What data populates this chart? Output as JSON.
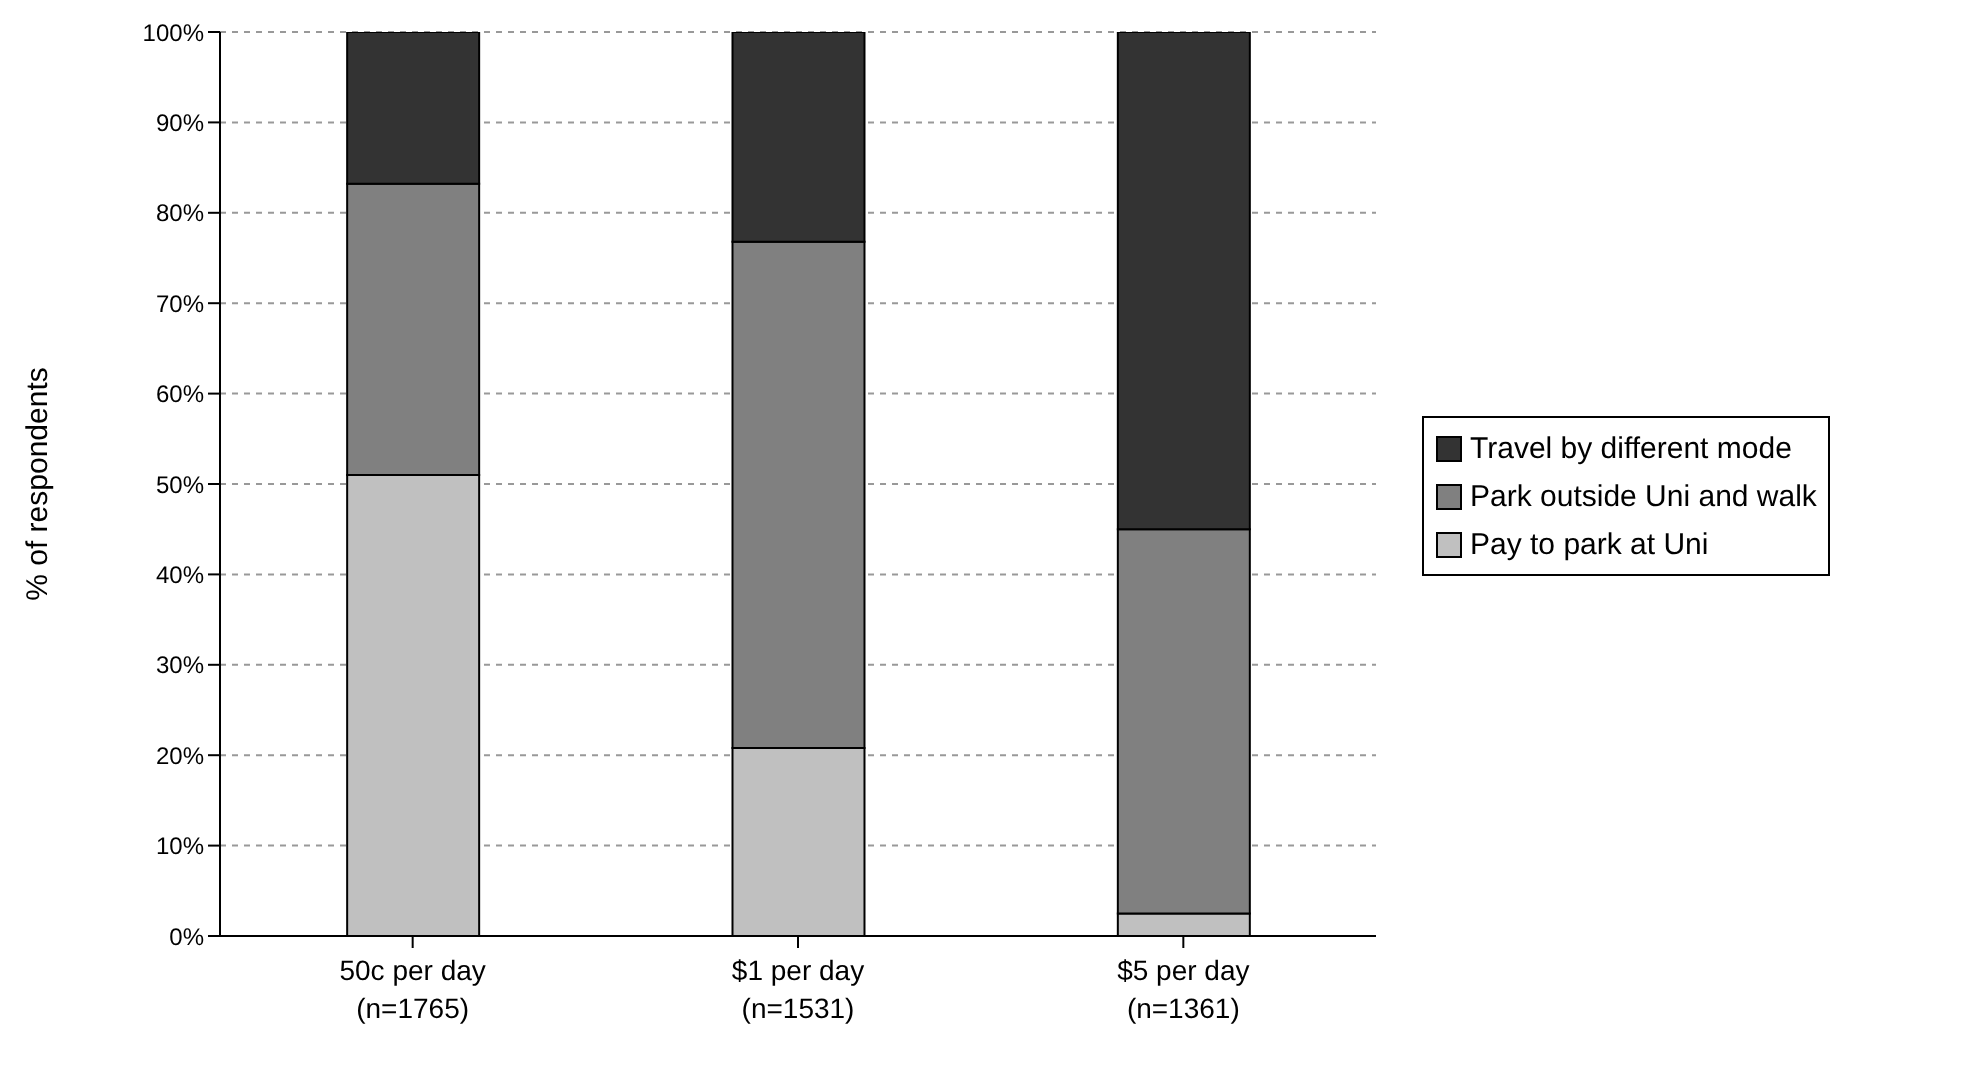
{
  "chart_data": {
    "type": "bar",
    "stacked": true,
    "ylabel": "% of respondents",
    "categories": [
      "50c per day\n(n=1765)",
      "$1 per day\n(n=1531)",
      "$5 per day\n(n=1361)"
    ],
    "series": [
      {
        "name": "Pay to park at Uni",
        "color": "#c0c0c0",
        "values": [
          51,
          20.8,
          2.5
        ]
      },
      {
        "name": "Park outside Uni and walk",
        "color": "#808080",
        "values": [
          32.2,
          56,
          42.5
        ]
      },
      {
        "name": "Travel by different mode",
        "color": "#333333",
        "values": [
          16.8,
          23.2,
          55
        ]
      }
    ],
    "ylim": [
      0,
      100
    ],
    "yticks": [
      {
        "value": 0,
        "label": "0%"
      },
      {
        "value": 10,
        "label": "10%"
      },
      {
        "value": 20,
        "label": "20%"
      },
      {
        "value": 30,
        "label": "30%"
      },
      {
        "value": 40,
        "label": "40%"
      },
      {
        "value": 50,
        "label": "50%"
      },
      {
        "value": 60,
        "label": "60%"
      },
      {
        "value": 70,
        "label": "70%"
      },
      {
        "value": 80,
        "label": "80%"
      },
      {
        "value": 90,
        "label": "90%"
      },
      {
        "value": 100,
        "label": "100%"
      }
    ],
    "grid": "y",
    "legend": "right"
  }
}
